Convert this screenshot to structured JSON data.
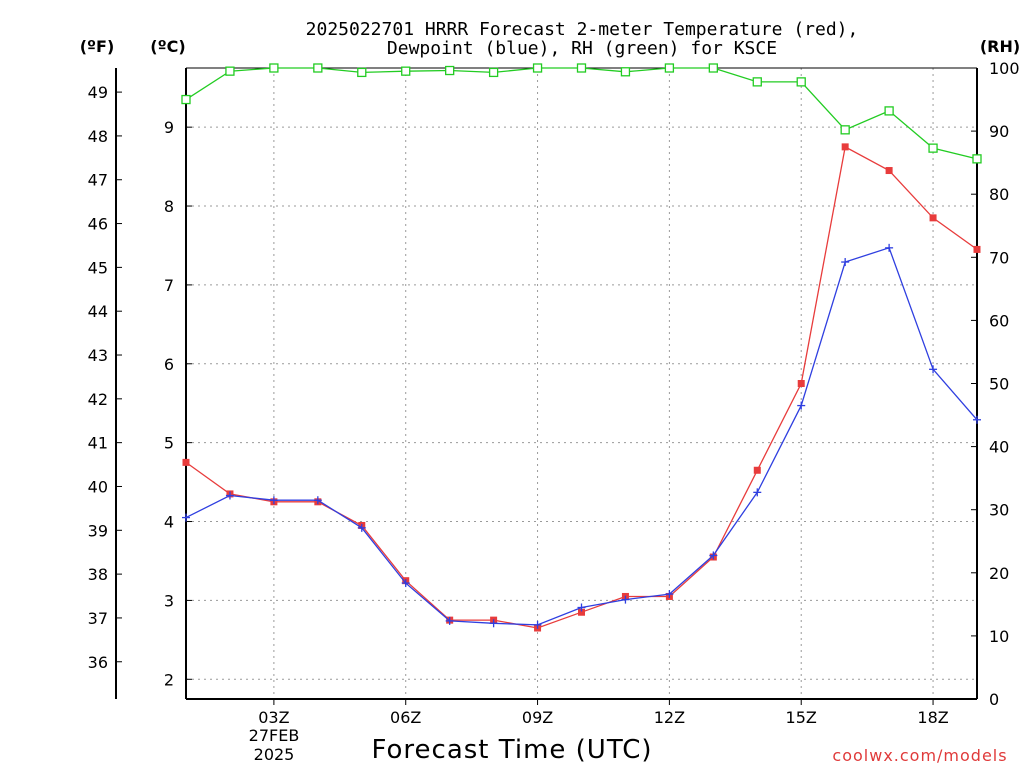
{
  "chart_data": {
    "type": "line",
    "title_line1": "2025022701 HRRR Forecast 2-meter Temperature (red),",
    "title_line2": "Dewpoint (blue), RH (green) for KSCE",
    "xlabel": "Forecast Time (UTC)",
    "credit": "coolwx.com/models",
    "unit_f": "(ºF)",
    "unit_c": "(ºC)",
    "unit_rh": "(RH)",
    "x_tick_labels": [
      "03Z",
      "06Z",
      "09Z",
      "12Z",
      "15Z",
      "18Z"
    ],
    "x_tick_hours": [
      3,
      6,
      9,
      12,
      15,
      18
    ],
    "date_label_line1": "27FEB",
    "date_label_line2": "2025",
    "x_range_hours": [
      1,
      19
    ],
    "c_ticks": [
      "2",
      "3",
      "4",
      "5",
      "6",
      "7",
      "8",
      "9"
    ],
    "c_range": [
      1.75,
      9.75
    ],
    "f_ticks": [
      "36",
      "37",
      "38",
      "39",
      "40",
      "41",
      "42",
      "43",
      "44",
      "45",
      "46",
      "47",
      "48",
      "49"
    ],
    "rh_ticks": [
      "0",
      "10",
      "20",
      "30",
      "40",
      "50",
      "60",
      "70",
      "80",
      "90",
      "100"
    ],
    "rh_range": [
      0,
      100
    ],
    "grid": true,
    "colors": {
      "temperature": "#e83c3c",
      "dewpoint": "#2f3fe0",
      "rh": "#22cc22"
    },
    "x_hours": [
      1,
      2,
      3,
      4,
      5,
      6,
      7,
      8,
      9,
      10,
      11,
      12,
      13,
      14,
      15,
      16,
      17,
      18,
      19
    ],
    "series": [
      {
        "name": "Temperature",
        "axis": "C",
        "values": [
          4.75,
          4.35,
          4.25,
          4.25,
          3.95,
          3.25,
          2.75,
          2.75,
          2.65,
          2.85,
          3.05,
          3.05,
          3.55,
          4.65,
          5.75,
          8.75,
          8.45,
          7.85,
          7.45
        ]
      },
      {
        "name": "Dewpoint",
        "axis": "C",
        "values": [
          4.05,
          4.33,
          4.27,
          4.27,
          3.92,
          3.22,
          2.74,
          2.71,
          2.69,
          2.91,
          3.01,
          3.08,
          3.57,
          4.37,
          5.47,
          7.29,
          7.47,
          5.93,
          5.29
        ]
      },
      {
        "name": "RH",
        "axis": "RH",
        "values": [
          95,
          99.5,
          100,
          100,
          99.3,
          99.5,
          99.6,
          99.3,
          100,
          100,
          99.4,
          100,
          100,
          97.8,
          97.8,
          90.2,
          93.2,
          87.3,
          85.6
        ]
      }
    ]
  }
}
